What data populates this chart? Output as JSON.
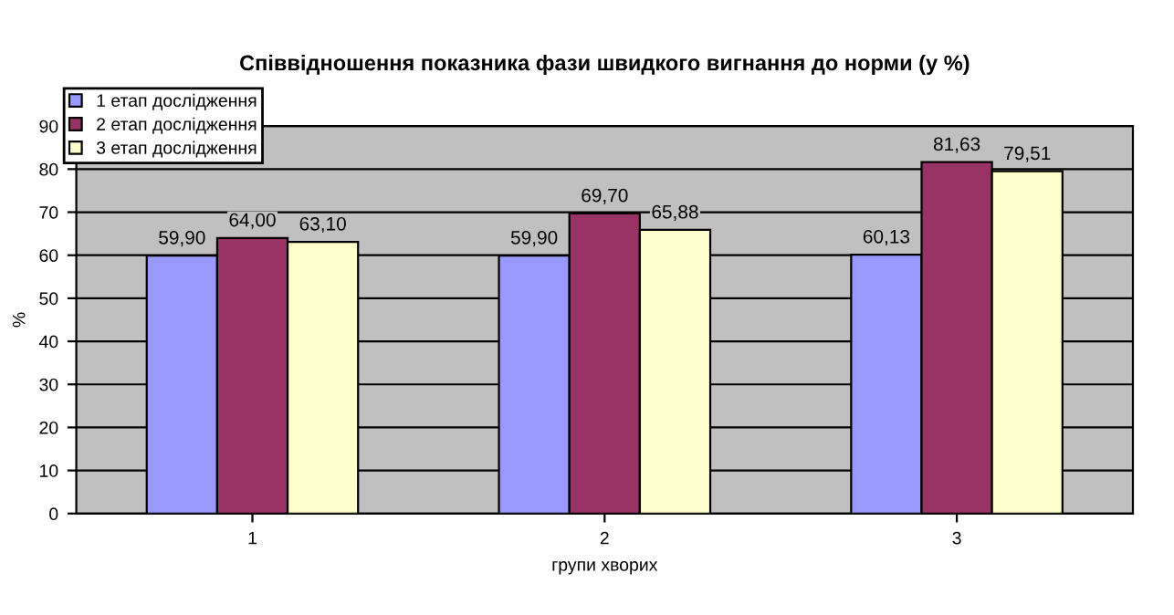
{
  "chart_data": {
    "type": "bar",
    "title": "Співвідношення показника фази швидкого вигнання до норми (у %)",
    "xlabel": "групи хворих",
    "ylabel": "%",
    "categories": [
      "1",
      "2",
      "3"
    ],
    "series": [
      {
        "name": "1 етап дослідження",
        "color": "#9999ff",
        "values": [
          59.9,
          59.9,
          60.13
        ],
        "value_labels": [
          "59,90",
          "59,90",
          "60,13"
        ]
      },
      {
        "name": "2 етап дослідження",
        "color": "#993366",
        "values": [
          64.0,
          69.7,
          81.63
        ],
        "value_labels": [
          "64,00",
          "69,70",
          "81,63"
        ]
      },
      {
        "name": "3 етап дослідження",
        "color": "#ffffcc",
        "values": [
          63.1,
          65.88,
          79.51
        ],
        "value_labels": [
          "63,10",
          "65,88",
          "79,51"
        ]
      }
    ],
    "ylim": [
      0,
      90
    ],
    "yticks": [
      0,
      10,
      20,
      30,
      40,
      50,
      60,
      70,
      80,
      90
    ],
    "grid": "y",
    "legend": "top left"
  }
}
